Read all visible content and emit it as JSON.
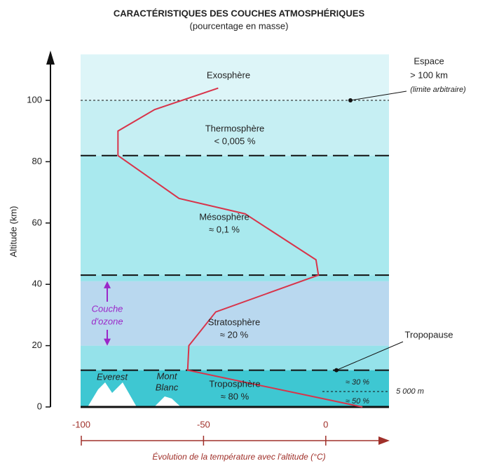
{
  "chart_data": {
    "type": "line",
    "title": "CARACTÉRISTIQUES DES COUCHES ATMOSPHÉRIQUES",
    "subtitle": "(pourcentage en masse)",
    "y_label": "Altitude (km)",
    "x_label": "Évolution de la température avec l'altitude (°C)",
    "ylim": [
      0,
      115
    ],
    "yticks": [
      0,
      20,
      40,
      60,
      80,
      100
    ],
    "xlim": [
      -100,
      25
    ],
    "xticks": [
      -100,
      -50,
      0
    ],
    "color": "#d8344a",
    "x": [
      15,
      -56.5,
      -56,
      -45,
      -3,
      -4,
      -33,
      -60,
      -85,
      -85,
      -70,
      -44
    ],
    "values": [
      0,
      12,
      20,
      31,
      43,
      48,
      63,
      68,
      82,
      90,
      97,
      104
    ],
    "layer_boundaries": [
      12,
      43,
      82
    ],
    "space_limit": 100,
    "ozone_range": [
      20,
      41
    ],
    "layers": [
      {
        "name": "Troposphère",
        "share": "≈ 80 %"
      },
      {
        "name": "Stratosphère",
        "share": "≈ 20 %"
      },
      {
        "name": "Mésosphère",
        "share": "≈ 0,1 %"
      },
      {
        "name": "Thermosphère",
        "share": "< 0,005 %"
      },
      {
        "name": "Exosphère"
      }
    ],
    "space": {
      "label": "Espace",
      "limit": "> 100 km",
      "note": "(limite arbitraire)"
    },
    "tropopause": "Tropopause",
    "troposphere_split": {
      "altitude_label": "5 000 m",
      "upper": "≈ 30 %",
      "lower": "≈ 50 %"
    },
    "mountains": [
      "Everest",
      "Mont",
      "Blanc"
    ],
    "ozone_label": [
      "Couche",
      "d'ozone"
    ]
  }
}
